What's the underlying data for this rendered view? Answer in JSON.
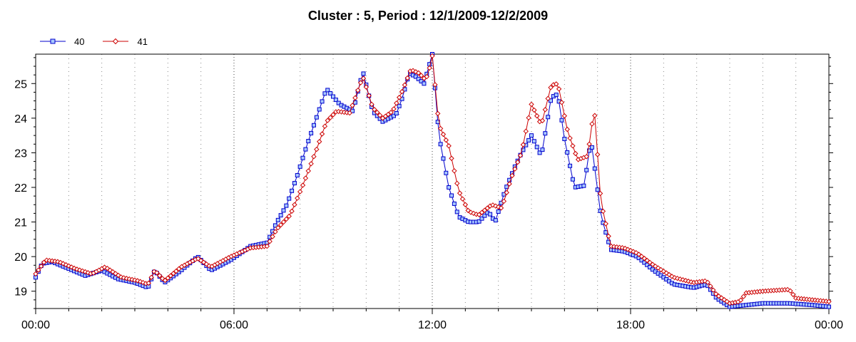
{
  "chart_data": {
    "type": "line",
    "title": "Cluster : 5, Period : 12/1/2009-12/2/2009",
    "xlabel": "",
    "ylabel": "",
    "x_ticks": [
      "00:00",
      "06:00",
      "12:00",
      "18:00",
      "00:00"
    ],
    "x_tick_hours": [
      0,
      6,
      12,
      18,
      24
    ],
    "y_ticks": [
      19,
      20,
      21,
      22,
      23,
      24,
      25
    ],
    "xlim_hours": [
      0,
      24
    ],
    "ylim": [
      18.5,
      25.85
    ],
    "grid": true,
    "legend_position": "top-left",
    "series": [
      {
        "name": "40",
        "color": "#0000cc",
        "marker": "square",
        "points": [
          [
            0,
            19.4
          ],
          [
            0.2,
            19.8
          ],
          [
            0.5,
            19.85
          ],
          [
            1,
            19.65
          ],
          [
            1.5,
            19.45
          ],
          [
            2,
            19.6
          ],
          [
            2.5,
            19.35
          ],
          [
            3,
            19.25
          ],
          [
            3.4,
            19.1
          ],
          [
            3.6,
            19.6
          ],
          [
            3.9,
            19.25
          ],
          [
            4.4,
            19.6
          ],
          [
            4.9,
            20.0
          ],
          [
            5.3,
            19.6
          ],
          [
            5.9,
            19.9
          ],
          [
            6.5,
            20.3
          ],
          [
            7.0,
            20.4
          ],
          [
            7.3,
            21.0
          ],
          [
            7.6,
            21.5
          ],
          [
            7.9,
            22.3
          ],
          [
            8.2,
            23.2
          ],
          [
            8.6,
            24.3
          ],
          [
            8.8,
            24.85
          ],
          [
            9.2,
            24.4
          ],
          [
            9.6,
            24.2
          ],
          [
            9.9,
            25.35
          ],
          [
            10.2,
            24.2
          ],
          [
            10.5,
            23.9
          ],
          [
            10.9,
            24.1
          ],
          [
            11.1,
            24.6
          ],
          [
            11.3,
            25.3
          ],
          [
            11.5,
            25.2
          ],
          [
            11.75,
            25.0
          ],
          [
            11.9,
            25.5
          ],
          [
            12.0,
            25.85
          ],
          [
            12.2,
            23.5
          ],
          [
            12.5,
            22.0
          ],
          [
            12.8,
            21.15
          ],
          [
            13.1,
            21.0
          ],
          [
            13.4,
            21.0
          ],
          [
            13.7,
            21.3
          ],
          [
            13.9,
            21.0
          ],
          [
            14.2,
            21.9
          ],
          [
            14.5,
            22.6
          ],
          [
            14.7,
            23.0
          ],
          [
            15.0,
            23.5
          ],
          [
            15.3,
            22.9
          ],
          [
            15.6,
            24.6
          ],
          [
            15.8,
            24.7
          ],
          [
            16.0,
            23.4
          ],
          [
            16.3,
            22.0
          ],
          [
            16.6,
            22.05
          ],
          [
            16.8,
            23.4
          ],
          [
            17.1,
            21.2
          ],
          [
            17.4,
            20.2
          ],
          [
            17.8,
            20.15
          ],
          [
            18.2,
            20.0
          ],
          [
            18.7,
            19.6
          ],
          [
            19.3,
            19.2
          ],
          [
            19.9,
            19.1
          ],
          [
            20.3,
            19.2
          ],
          [
            20.6,
            18.8
          ],
          [
            21.0,
            18.55
          ],
          [
            21.5,
            18.6
          ],
          [
            22.0,
            18.65
          ],
          [
            22.8,
            18.65
          ],
          [
            23.5,
            18.6
          ],
          [
            24.0,
            18.55
          ]
        ]
      },
      {
        "name": "41",
        "color": "#cc0000",
        "marker": "diamond",
        "points": [
          [
            0,
            19.5
          ],
          [
            0.3,
            19.9
          ],
          [
            0.7,
            19.85
          ],
          [
            1.2,
            19.65
          ],
          [
            1.7,
            19.5
          ],
          [
            2.1,
            19.7
          ],
          [
            2.6,
            19.4
          ],
          [
            3.1,
            19.3
          ],
          [
            3.4,
            19.2
          ],
          [
            3.6,
            19.6
          ],
          [
            3.9,
            19.3
          ],
          [
            4.4,
            19.7
          ],
          [
            4.9,
            19.95
          ],
          [
            5.3,
            19.7
          ],
          [
            5.9,
            20.0
          ],
          [
            6.5,
            20.25
          ],
          [
            7.0,
            20.3
          ],
          [
            7.3,
            20.8
          ],
          [
            7.7,
            21.2
          ],
          [
            8.1,
            22.1
          ],
          [
            8.5,
            23.1
          ],
          [
            8.8,
            23.9
          ],
          [
            9.1,
            24.2
          ],
          [
            9.5,
            24.15
          ],
          [
            9.9,
            25.2
          ],
          [
            10.2,
            24.3
          ],
          [
            10.5,
            24.0
          ],
          [
            10.8,
            24.2
          ],
          [
            11.1,
            24.8
          ],
          [
            11.35,
            25.4
          ],
          [
            11.6,
            25.3
          ],
          [
            11.8,
            25.1
          ],
          [
            11.95,
            25.55
          ],
          [
            12.0,
            25.8
          ],
          [
            12.2,
            23.8
          ],
          [
            12.5,
            23.2
          ],
          [
            12.8,
            21.9
          ],
          [
            13.1,
            21.3
          ],
          [
            13.4,
            21.2
          ],
          [
            13.8,
            21.5
          ],
          [
            14.1,
            21.4
          ],
          [
            14.4,
            22.3
          ],
          [
            14.7,
            23.0
          ],
          [
            15.0,
            24.4
          ],
          [
            15.3,
            23.8
          ],
          [
            15.6,
            24.95
          ],
          [
            15.8,
            25.0
          ],
          [
            16.1,
            23.6
          ],
          [
            16.4,
            22.8
          ],
          [
            16.7,
            22.9
          ],
          [
            16.9,
            24.3
          ],
          [
            17.1,
            21.6
          ],
          [
            17.4,
            20.3
          ],
          [
            17.8,
            20.25
          ],
          [
            18.2,
            20.1
          ],
          [
            18.7,
            19.75
          ],
          [
            19.3,
            19.4
          ],
          [
            19.9,
            19.25
          ],
          [
            20.3,
            19.3
          ],
          [
            20.6,
            18.9
          ],
          [
            21.0,
            18.65
          ],
          [
            21.3,
            18.7
          ],
          [
            21.5,
            18.95
          ],
          [
            22.0,
            19.0
          ],
          [
            22.8,
            19.05
          ],
          [
            23.0,
            18.8
          ],
          [
            23.5,
            18.75
          ],
          [
            24.0,
            18.7
          ]
        ]
      }
    ]
  }
}
